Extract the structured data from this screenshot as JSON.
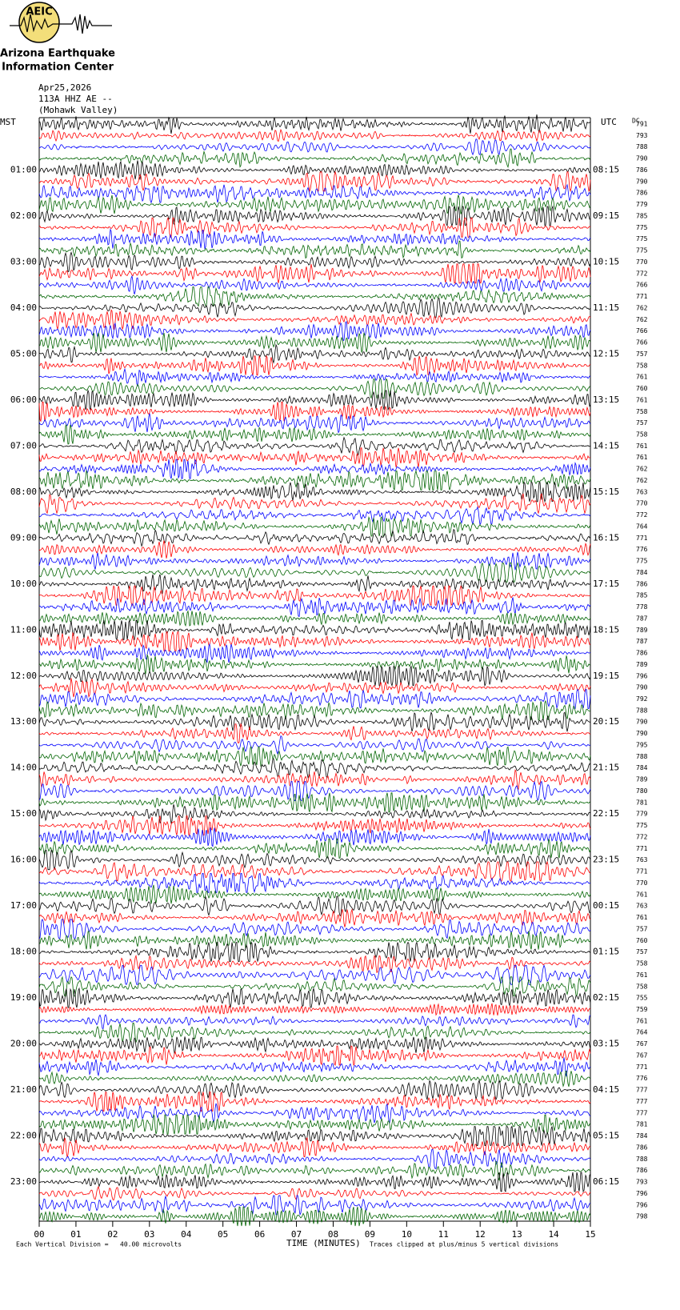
{
  "logo": {
    "acronym": "AEIC",
    "line1": "Arizona Earthquake",
    "line2": "Information Center"
  },
  "header": {
    "date": "Apr25,2026",
    "station": "113A HHZ AE --",
    "site": "(Mohawk Valley)"
  },
  "left_label": "MST",
  "right_label": "UTC",
  "dc_label": "DC",
  "local_times": [
    "01:00",
    "02:00",
    "03:00",
    "04:00",
    "05:00",
    "06:00",
    "07:00",
    "08:00",
    "09:00",
    "10:00",
    "11:00",
    "12:00",
    "13:00",
    "14:00",
    "15:00",
    "16:00",
    "17:00",
    "18:00",
    "19:00",
    "20:00",
    "21:00",
    "22:00",
    "23:00"
  ],
  "utc_times": [
    "08:15",
    "09:15",
    "10:15",
    "11:15",
    "12:15",
    "13:15",
    "14:15",
    "15:15",
    "16:15",
    "17:15",
    "18:15",
    "19:15",
    "20:15",
    "21:15",
    "22:15",
    "23:15",
    "00:15",
    "01:15",
    "02:15",
    "03:15",
    "04:15",
    "05:15",
    "06:15"
  ],
  "dc_values": [
    791,
    793,
    788,
    790,
    786,
    790,
    786,
    779,
    785,
    775,
    775,
    775,
    770,
    772,
    766,
    771,
    762,
    762,
    766,
    766,
    757,
    758,
    761,
    760,
    761,
    758,
    757,
    758,
    761,
    761,
    762,
    762,
    763,
    770,
    772,
    764,
    771,
    776,
    775,
    784,
    786,
    785,
    778,
    787,
    789,
    787,
    786,
    789,
    796,
    790,
    792,
    788,
    790,
    790,
    795,
    788,
    784,
    789,
    780,
    781,
    779,
    775,
    772,
    771,
    763,
    771,
    770,
    761,
    763,
    761,
    757,
    760,
    757,
    758,
    761,
    758,
    755,
    759,
    761,
    764,
    767,
    767,
    771,
    776,
    777,
    777,
    777,
    781,
    784,
    786,
    788,
    786,
    793,
    796,
    796,
    798
  ],
  "x_ticks": [
    "00",
    "01",
    "02",
    "03",
    "04",
    "05",
    "06",
    "07",
    "08",
    "09",
    "10",
    "11",
    "12",
    "13",
    "14",
    "15"
  ],
  "x_axis_label": "TIME (MINUTES)",
  "footer": {
    "scale": "Each Vertical Division =   40.00 microvolts",
    "clip": "Traces clipped at plus/minus 5 vertical divisions"
  },
  "trace_colors": [
    "#000000",
    "#ff0000",
    "#0000ff",
    "#006400"
  ]
}
